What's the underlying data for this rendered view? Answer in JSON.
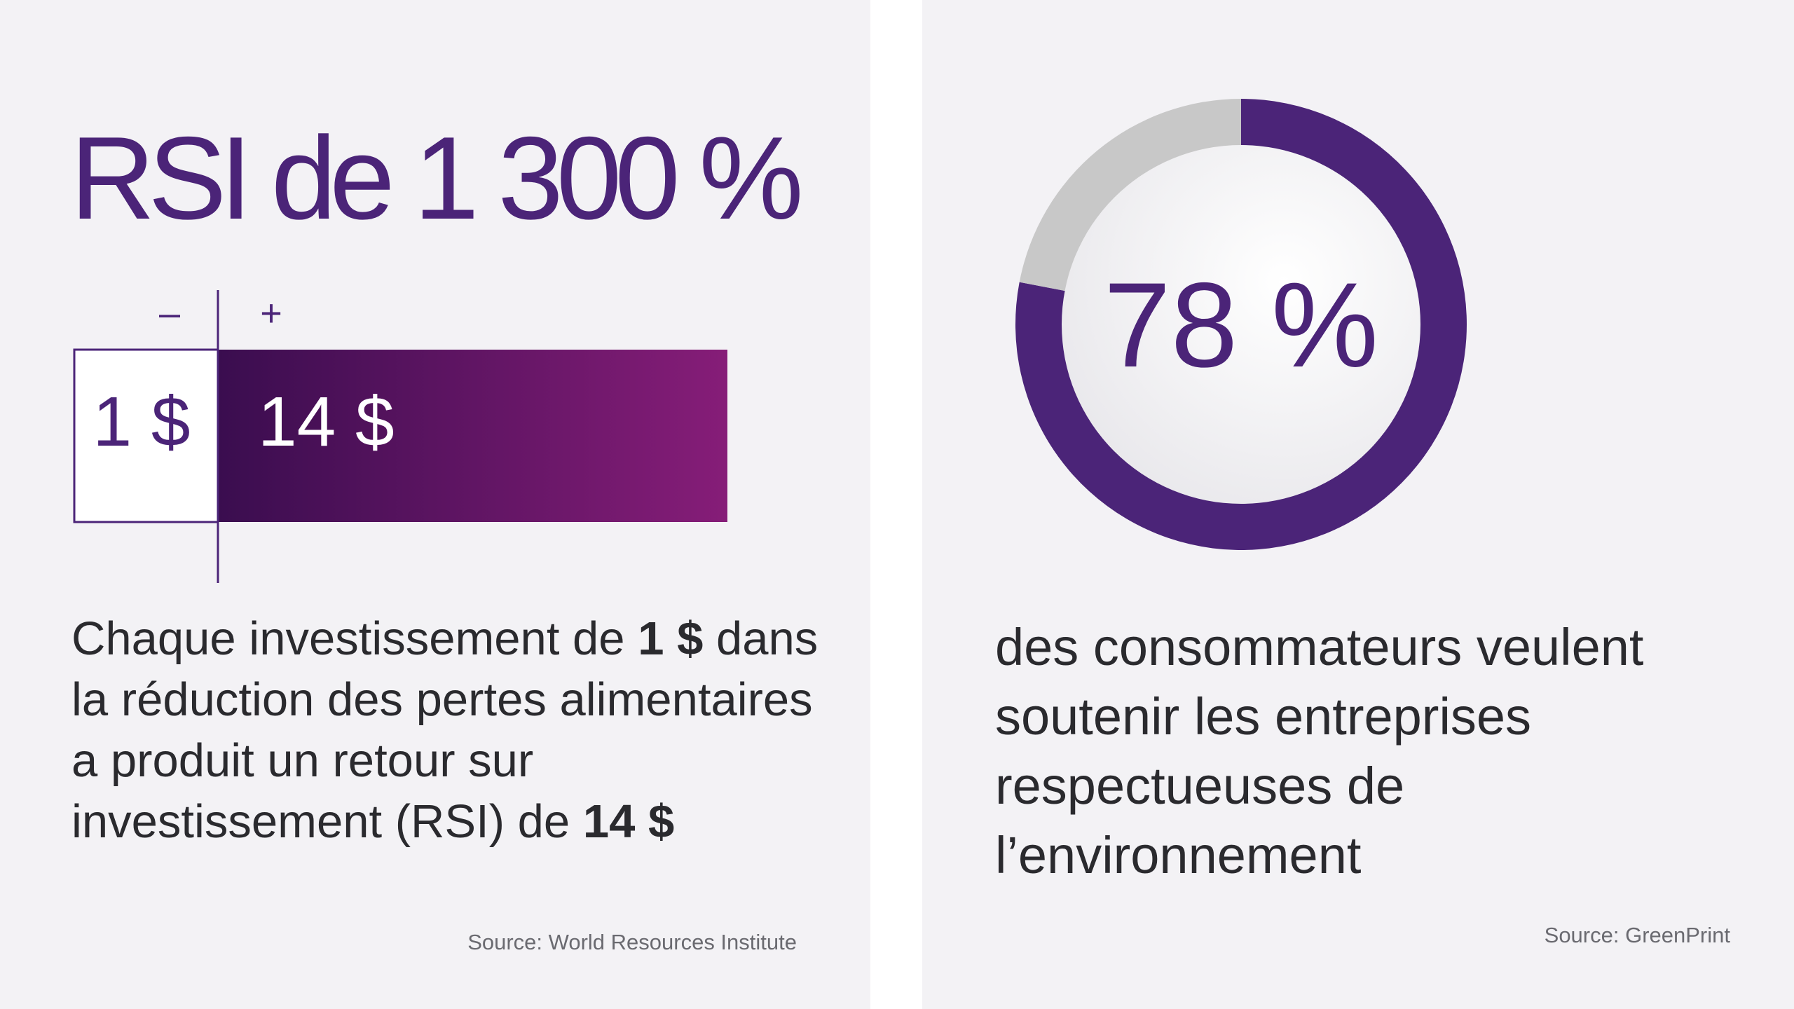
{
  "left": {
    "headline": "RSI de 1 300 %",
    "minus_sign": "–",
    "plus_sign": "+",
    "cost_label": "1 $",
    "return_label": "14 $",
    "desc_part1": "Chaque investissement de ",
    "desc_bold1": "1 $",
    "desc_part2": " dans la réduction des pertes alimentaires a produit un retour sur investissement (RSI) de ",
    "desc_bold2": "14 $",
    "source": "Source: World Resources Institute"
  },
  "right": {
    "percent_label": "78 %",
    "text": "des consommateurs veulent soutenir les entreprises respectueuses de l’environnement",
    "source": "Source: GreenPrint"
  },
  "colors": {
    "primary_purple": "#4b2478",
    "gradient_start": "#3a0d4f",
    "gradient_end": "#861d78",
    "remainder_gray": "#c8c8c8",
    "background": "#f3f2f5"
  },
  "chart_data": [
    {
      "type": "bar",
      "categories": [
        "–",
        "+"
      ],
      "values": [
        1,
        14
      ],
      "title": "RSI de 1 300 %",
      "unit": "$"
    },
    {
      "type": "pie",
      "style": "donut",
      "categories": [
        "des consommateurs veulent soutenir les entreprises respectueuses de l’environnement",
        ""
      ],
      "values": [
        78,
        22
      ],
      "unit": "%"
    }
  ]
}
